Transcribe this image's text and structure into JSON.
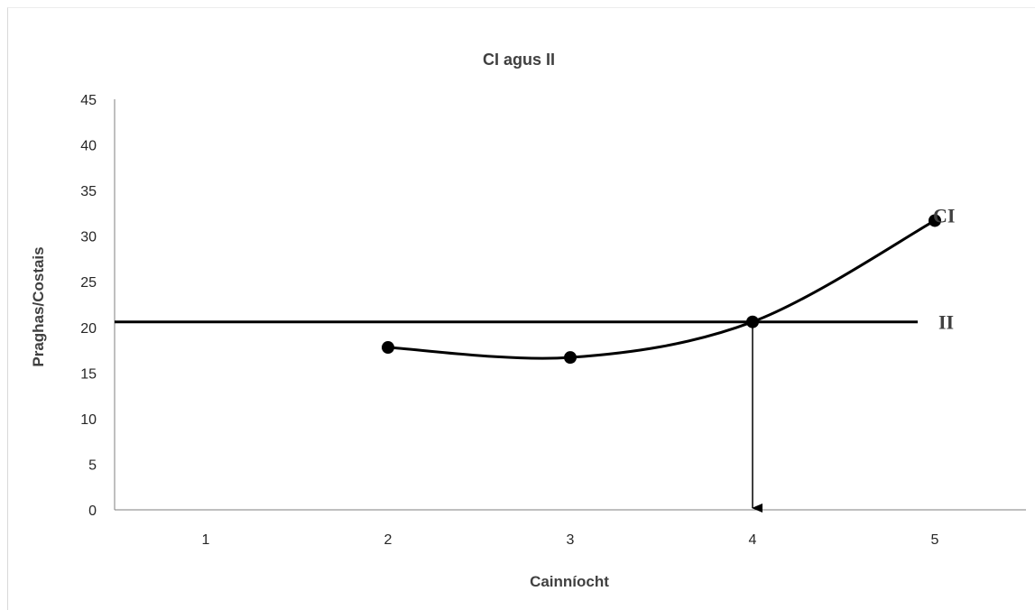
{
  "chart_data": {
    "type": "line",
    "title": "CI agus II",
    "xlabel": "Cainníocht",
    "ylabel": "Praghas/Costais",
    "categories": [
      "1",
      "2",
      "3",
      "4",
      "5"
    ],
    "ylim": [
      0,
      45
    ],
    "yticks": [
      "0",
      "5",
      "10",
      "15",
      "20",
      "25",
      "30",
      "35",
      "40",
      "45"
    ],
    "grid": false,
    "series": [
      {
        "name": "CI",
        "x": [
          2,
          3,
          4,
          5
        ],
        "values": [
          17.8,
          16.7,
          20.6,
          31.7
        ],
        "markers": true
      },
      {
        "name": "II",
        "y": 20.6,
        "kind": "horizontal-line"
      }
    ],
    "annotations": [
      {
        "type": "arrow-down",
        "from": {
          "x": 4,
          "y": 20.6
        },
        "to": {
          "x": 4,
          "y": 0
        }
      }
    ]
  }
}
